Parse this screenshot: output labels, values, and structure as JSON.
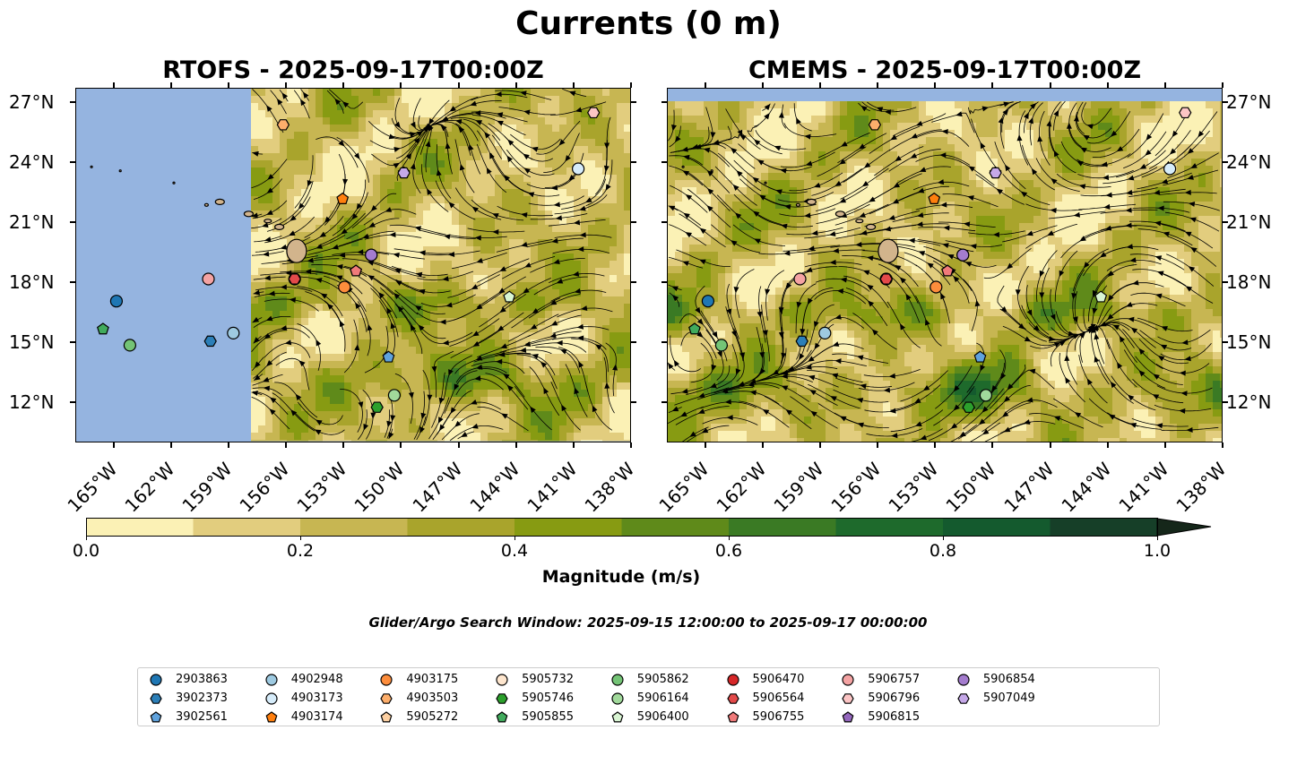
{
  "figure": {
    "title": "Currents (0 m)",
    "left_title": "RTOFS - 2025-09-17T00:00Z",
    "right_title": "CMEMS - 2025-09-17T00:00Z",
    "lat_ticks": [
      "27°N",
      "24°N",
      "21°N",
      "18°N",
      "15°N",
      "12°N"
    ],
    "lon_ticks": [
      "165°W",
      "162°W",
      "159°W",
      "156°W",
      "153°W",
      "150°W",
      "147°W",
      "144°W",
      "141°W",
      "138°W"
    ],
    "extent": {
      "lon_min": -167,
      "lon_max": -138,
      "lat_min": 10,
      "lat_max": 27.7
    },
    "rtofs_data_lon_min": -157.9,
    "colors": {
      "ocean_nodata": "#95b4e0",
      "land": "#d2b48c"
    }
  },
  "colorbar": {
    "label": "Magnitude (m/s)",
    "tick_labels": [
      "0.0",
      "0.2",
      "0.4",
      "0.6",
      "0.8",
      "1.0"
    ],
    "levels": [
      0.0,
      0.1,
      0.2,
      0.3,
      0.4,
      0.5,
      0.6,
      0.7,
      0.8,
      0.9,
      1.0
    ],
    "colors": [
      "#fbf1b5",
      "#e2cd7e",
      "#c7b652",
      "#a9a42c",
      "#879b12",
      "#5f8a1a",
      "#3a7a24",
      "#1e6a2c",
      "#145a2e",
      "#163f28"
    ],
    "extend_color": "#15271a"
  },
  "search_window": "Glider/Argo Search Window: 2025-09-15 12:00:00 to 2025-09-17 00:00:00",
  "floats": [
    {
      "id": "2903863",
      "marker": "circle",
      "color": "#1f77b4",
      "lon": -164.9,
      "lat": 17.1
    },
    {
      "id": "3902373",
      "marker": "hexagon",
      "color": "#2c7fb8",
      "lon": -160.0,
      "lat": 15.1
    },
    {
      "id": "3902561",
      "marker": "pentagon",
      "color": "#5fa2dd",
      "lon": -150.7,
      "lat": 14.3
    },
    {
      "id": "4902948",
      "marker": "circle",
      "color": "#9ecae1",
      "lon": -158.8,
      "lat": 15.5
    },
    {
      "id": "4903173",
      "marker": "circle",
      "color": "#d6ecfa",
      "lon": -140.8,
      "lat": 23.7
    },
    {
      "id": "4903174",
      "marker": "pentagon",
      "color": "#ff7f0e",
      "lon": -153.1,
      "lat": 22.2
    },
    {
      "id": "4903175",
      "marker": "circle",
      "color": "#fd8d3c",
      "lon": -153.0,
      "lat": 17.8
    },
    {
      "id": "4903503",
      "marker": "hexagon",
      "color": "#fdae6b",
      "lon": -156.2,
      "lat": 25.9
    },
    {
      "id": "5905272",
      "marker": "pentagon",
      "color": "#fdd0a2",
      "lon": -152.4,
      "lat": 18.6
    },
    {
      "id": "5905732",
      "marker": "circle",
      "color": "#fee6ce",
      "lon": -151.6,
      "lat": 19.4
    },
    {
      "id": "5905746",
      "marker": "hexagon",
      "color": "#2ca02c",
      "lon": -151.3,
      "lat": 11.8
    },
    {
      "id": "5905855",
      "marker": "pentagon",
      "color": "#41ab5d",
      "lon": -165.6,
      "lat": 15.7
    },
    {
      "id": "5905862",
      "marker": "circle",
      "color": "#74c476",
      "lon": -164.2,
      "lat": 14.9
    },
    {
      "id": "5906164",
      "marker": "circle",
      "color": "#a1d99b",
      "lon": -150.4,
      "lat": 12.4
    },
    {
      "id": "5906400",
      "marker": "pentagon",
      "color": "#d9f5d3",
      "lon": -144.4,
      "lat": 17.3
    },
    {
      "id": "5906470",
      "marker": "circle",
      "color": "#d62728",
      "lon": -155.6,
      "lat": 18.2
    },
    {
      "id": "5906564",
      "marker": "hexagon",
      "color": "#e34a4a",
      "lon": -155.6,
      "lat": 18.2
    },
    {
      "id": "5906755",
      "marker": "pentagon",
      "color": "#f07a7a",
      "lon": -152.4,
      "lat": 18.6
    },
    {
      "id": "5906757",
      "marker": "circle",
      "color": "#f4a3a3",
      "lon": -160.1,
      "lat": 18.2
    },
    {
      "id": "5906796",
      "marker": "hexagon",
      "color": "#fcc5c5",
      "lon": -140.0,
      "lat": 26.5
    },
    {
      "id": "5906815",
      "marker": "pentagon",
      "color": "#9467bd",
      "lon": -149.9,
      "lat": 23.5
    },
    {
      "id": "5906854",
      "marker": "circle",
      "color": "#a47cce",
      "lon": -151.6,
      "lat": 19.4
    },
    {
      "id": "5907049",
      "marker": "hexagon",
      "color": "#c5a8e8",
      "lon": -149.9,
      "lat": 23.5
    }
  ]
}
